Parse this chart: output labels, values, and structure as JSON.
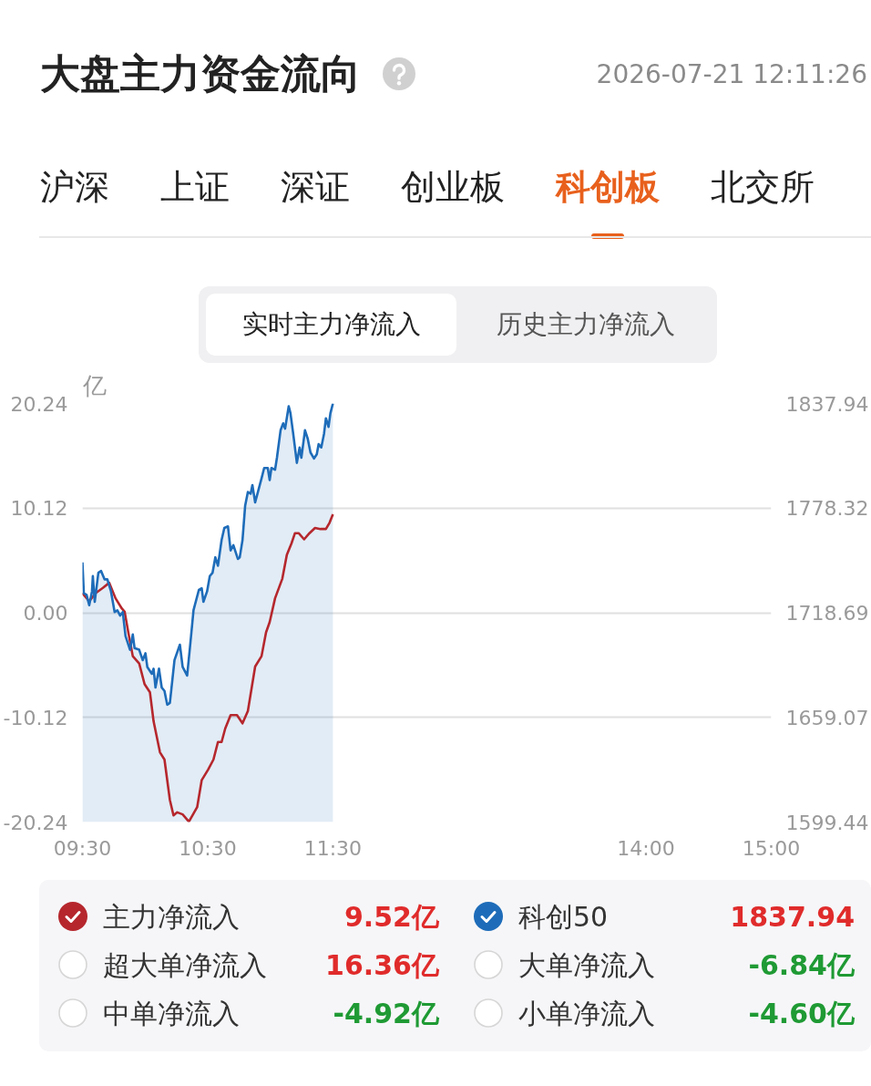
{
  "chart_data": {
    "type": "line",
    "title": "大盘主力资金流向",
    "subtitle": "2026-07-21 12:11:26",
    "ylabel": "亿",
    "xlim": [
      9.5,
      15
    ],
    "xticks": [
      {
        "value": 9.5,
        "label": "09:30"
      },
      {
        "value": 10.5,
        "label": "10:30"
      },
      {
        "value": 11.5,
        "label": "11:30"
      },
      {
        "value": 14,
        "label": "14:00"
      },
      {
        "value": 15,
        "label": "15:00"
      }
    ],
    "ylim": [
      -20.24,
      20.24
    ],
    "yticks": [
      -20.24,
      -10.12,
      {
        "value": 0,
        "label": "0.00"
      },
      10.12,
      20.24
    ],
    "y2lim": [
      1599.44,
      1837.94
    ],
    "y2ticks": [
      1599.44,
      1659.07,
      1718.69,
      1778.32,
      1837.94
    ],
    "grid": "y",
    "legend": "bottom",
    "series": [
      {
        "name": "主力净流入",
        "color": "#b5272d",
        "x": [
          9.5,
          9.554,
          9.605,
          9.663,
          9.714,
          9.764,
          9.815,
          9.837,
          9.866,
          9.902,
          9.953,
          9.996,
          10.039,
          10.068,
          10.119,
          10.155,
          10.198,
          10.227,
          10.257,
          10.3,
          10.35,
          10.416,
          10.452,
          10.502,
          10.546,
          10.582,
          10.611,
          10.64,
          10.683,
          10.734,
          10.778,
          10.821,
          10.879,
          10.93,
          10.966,
          10.995,
          11.038,
          11.096,
          11.132,
          11.169,
          11.197,
          11.226,
          11.27,
          11.313,
          11.357,
          11.4,
          11.444,
          11.473,
          11.5
        ],
        "values": [
          1.9,
          1.1,
          1.9,
          2.4,
          2.9,
          1.4,
          0.4,
          0.1,
          -1.9,
          -4.2,
          -4.9,
          -6.9,
          -7.7,
          -10.5,
          -13.5,
          -14.2,
          -18.1,
          -19.6,
          -19.3,
          -19.5,
          -20.2,
          -18.8,
          -16.2,
          -15.2,
          -14.2,
          -12.5,
          -12.5,
          -11.2,
          -9.9,
          -9.9,
          -10.7,
          -9.5,
          -5.2,
          -4.2,
          -1.9,
          -0.9,
          1.4,
          3.3,
          5.6,
          6.7,
          7.7,
          7.7,
          7.1,
          7.7,
          8.2,
          8.1,
          8.1,
          8.7,
          9.52
        ]
      },
      {
        "name": "科创50",
        "type": "area",
        "axis": "y2",
        "color": "#1e6cb9",
        "x": [
          9.5,
          9.511,
          9.533,
          9.554,
          9.576,
          9.583,
          9.598,
          9.627,
          9.649,
          9.677,
          9.699,
          9.728,
          9.757,
          9.779,
          9.801,
          9.822,
          9.844,
          9.88,
          9.902,
          9.916,
          9.953,
          9.981,
          10.003,
          10.018,
          10.054,
          10.068,
          10.083,
          10.111,
          10.133,
          10.155,
          10.177,
          10.198,
          10.235,
          10.278,
          10.3,
          10.336,
          10.358,
          10.387,
          10.43,
          10.452,
          10.466,
          10.495,
          10.517,
          10.539,
          10.561,
          10.582,
          10.611,
          10.633,
          10.662,
          10.683,
          10.705,
          10.741,
          10.756,
          10.778,
          10.799,
          10.821,
          10.843,
          10.857,
          10.879,
          10.901,
          10.93,
          10.951,
          10.98,
          10.995,
          11.009,
          11.038,
          11.053,
          11.082,
          11.103,
          11.118,
          11.147,
          11.161,
          11.183,
          11.212,
          11.234,
          11.248,
          11.277,
          11.299,
          11.321,
          11.349,
          11.371,
          11.386,
          11.407,
          11.429,
          11.444,
          11.465,
          11.48,
          11.5
        ],
        "values": [
          1747.4,
          1729.8,
          1728.9,
          1723.0,
          1730.8,
          1739.6,
          1724.9,
          1741.5,
          1742.5,
          1737.7,
          1737.7,
          1730.8,
          1719.1,
          1720.1,
          1717.1,
          1719.1,
          1705.4,
          1697.6,
          1706.3,
          1698.6,
          1697.6,
          1691.7,
          1695.6,
          1687.8,
          1683.9,
          1686.8,
          1676.1,
          1686.8,
          1676.1,
          1674.1,
          1666.3,
          1667.3,
          1691.7,
          1700.5,
          1687.8,
          1682.9,
          1698.6,
          1720.2,
          1731.8,
          1732.7,
          1724.9,
          1730.8,
          1739.6,
          1741.5,
          1750.3,
          1745.5,
          1760.1,
          1767.0,
          1767.9,
          1754.2,
          1757.2,
          1749.4,
          1750.3,
          1760.1,
          1779.6,
          1787.5,
          1786.5,
          1791.4,
          1781.6,
          1787.5,
          1795.3,
          1801.2,
          1801.2,
          1794.3,
          1801.2,
          1800.2,
          1807.0,
          1822.7,
          1826.6,
          1823.6,
          1836.4,
          1832.4,
          1820.7,
          1804.1,
          1812.9,
          1807.0,
          1822.7,
          1817.8,
          1810.0,
          1806.6,
          1809.0,
          1814.8,
          1812.9,
          1820.7,
          1829.5,
          1824.6,
          1832.4,
          1837.94
        ]
      }
    ],
    "annotations": [
      "沪深",
      "上证",
      "深证",
      "创业板",
      "科创板",
      "北交所",
      "实时主力净流入",
      "历史主力净流入",
      "9.52亿",
      "1837.94",
      "超大单净流入",
      "16.36亿",
      "大单净流入",
      "-6.84亿",
      "中单净流入",
      "-4.92亿",
      "小单净流入",
      "-4.60亿"
    ]
  }
}
